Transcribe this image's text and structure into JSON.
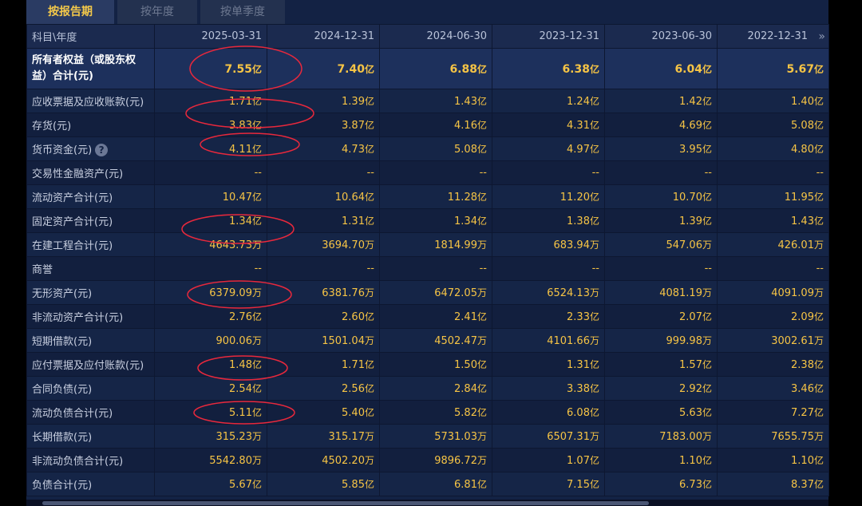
{
  "tabs": [
    {
      "label": "按报告期",
      "active": true
    },
    {
      "label": "按年度",
      "active": false
    },
    {
      "label": "按单季度",
      "active": false
    }
  ],
  "header": {
    "label": "科目\\年度",
    "periods": [
      "2025-03-31",
      "2024-12-31",
      "2024-06-30",
      "2023-12-31",
      "2023-06-30",
      "2022-12-31"
    ],
    "more_icon": "double-chevron-right-icon"
  },
  "rows": [
    {
      "label": "所有者权益（或股东权益）合计(元)",
      "values": [
        [
          "7.55",
          "亿"
        ],
        [
          "7.40",
          "亿"
        ],
        [
          "6.88",
          "亿"
        ],
        [
          "6.38",
          "亿"
        ],
        [
          "6.04",
          "亿"
        ],
        [
          "5.67",
          "亿"
        ]
      ],
      "highlight": true
    },
    {
      "label": "应收票据及应收账款(元)",
      "values": [
        [
          "1.71",
          "亿"
        ],
        [
          "1.39",
          "亿"
        ],
        [
          "1.43",
          "亿"
        ],
        [
          "1.24",
          "亿"
        ],
        [
          "1.42",
          "亿"
        ],
        [
          "1.40",
          "亿"
        ]
      ]
    },
    {
      "label": "存货(元)",
      "values": [
        [
          "3.83",
          "亿"
        ],
        [
          "3.87",
          "亿"
        ],
        [
          "4.16",
          "亿"
        ],
        [
          "4.31",
          "亿"
        ],
        [
          "4.69",
          "亿"
        ],
        [
          "5.08",
          "亿"
        ]
      ]
    },
    {
      "label": "货币资金(元)",
      "help": "?",
      "values": [
        [
          "4.11",
          "亿"
        ],
        [
          "4.73",
          "亿"
        ],
        [
          "5.08",
          "亿"
        ],
        [
          "4.97",
          "亿"
        ],
        [
          "3.95",
          "亿"
        ],
        [
          "4.80",
          "亿"
        ]
      ]
    },
    {
      "label": "交易性金融资产(元)",
      "values": [
        [
          "--",
          ""
        ],
        [
          "--",
          ""
        ],
        [
          "--",
          ""
        ],
        [
          "--",
          ""
        ],
        [
          "--",
          ""
        ],
        [
          "--",
          ""
        ]
      ]
    },
    {
      "label": "流动资产合计(元)",
      "values": [
        [
          "10.47",
          "亿"
        ],
        [
          "10.64",
          "亿"
        ],
        [
          "11.28",
          "亿"
        ],
        [
          "11.20",
          "亿"
        ],
        [
          "10.70",
          "亿"
        ],
        [
          "11.95",
          "亿"
        ]
      ]
    },
    {
      "label": "固定资产合计(元)",
      "values": [
        [
          "1.34",
          "亿"
        ],
        [
          "1.31",
          "亿"
        ],
        [
          "1.34",
          "亿"
        ],
        [
          "1.38",
          "亿"
        ],
        [
          "1.39",
          "亿"
        ],
        [
          "1.43",
          "亿"
        ]
      ]
    },
    {
      "label": "在建工程合计(元)",
      "values": [
        [
          "4643.73",
          "万"
        ],
        [
          "3694.70",
          "万"
        ],
        [
          "1814.99",
          "万"
        ],
        [
          "683.94",
          "万"
        ],
        [
          "547.06",
          "万"
        ],
        [
          "426.01",
          "万"
        ]
      ]
    },
    {
      "label": "商誉",
      "values": [
        [
          "--",
          ""
        ],
        [
          "--",
          ""
        ],
        [
          "--",
          ""
        ],
        [
          "--",
          ""
        ],
        [
          "--",
          ""
        ],
        [
          "--",
          ""
        ]
      ]
    },
    {
      "label": "无形资产(元)",
      "values": [
        [
          "6379.09",
          "万"
        ],
        [
          "6381.76",
          "万"
        ],
        [
          "6472.05",
          "万"
        ],
        [
          "6524.13",
          "万"
        ],
        [
          "4081.19",
          "万"
        ],
        [
          "4091.09",
          "万"
        ]
      ]
    },
    {
      "label": "非流动资产合计(元)",
      "values": [
        [
          "2.76",
          "亿"
        ],
        [
          "2.60",
          "亿"
        ],
        [
          "2.41",
          "亿"
        ],
        [
          "2.33",
          "亿"
        ],
        [
          "2.07",
          "亿"
        ],
        [
          "2.09",
          "亿"
        ]
      ]
    },
    {
      "label": "短期借款(元)",
      "values": [
        [
          "900.06",
          "万"
        ],
        [
          "1501.04",
          "万"
        ],
        [
          "4502.47",
          "万"
        ],
        [
          "4101.66",
          "万"
        ],
        [
          "999.98",
          "万"
        ],
        [
          "3002.61",
          "万"
        ]
      ]
    },
    {
      "label": "应付票据及应付账款(元)",
      "values": [
        [
          "1.48",
          "亿"
        ],
        [
          "1.71",
          "亿"
        ],
        [
          "1.50",
          "亿"
        ],
        [
          "1.31",
          "亿"
        ],
        [
          "1.57",
          "亿"
        ],
        [
          "2.38",
          "亿"
        ]
      ]
    },
    {
      "label": "合同负债(元)",
      "values": [
        [
          "2.54",
          "亿"
        ],
        [
          "2.56",
          "亿"
        ],
        [
          "2.84",
          "亿"
        ],
        [
          "3.38",
          "亿"
        ],
        [
          "2.92",
          "亿"
        ],
        [
          "3.46",
          "亿"
        ]
      ]
    },
    {
      "label": "流动负债合计(元)",
      "values": [
        [
          "5.11",
          "亿"
        ],
        [
          "5.40",
          "亿"
        ],
        [
          "5.82",
          "亿"
        ],
        [
          "6.08",
          "亿"
        ],
        [
          "5.63",
          "亿"
        ],
        [
          "7.27",
          "亿"
        ]
      ]
    },
    {
      "label": "长期借款(元)",
      "values": [
        [
          "315.23",
          "万"
        ],
        [
          "315.17",
          "万"
        ],
        [
          "5731.03",
          "万"
        ],
        [
          "6507.31",
          "万"
        ],
        [
          "7183.00",
          "万"
        ],
        [
          "7655.75",
          "万"
        ]
      ]
    },
    {
      "label": "非流动负债合计(元)",
      "values": [
        [
          "5542.80",
          "万"
        ],
        [
          "4502.20",
          "万"
        ],
        [
          "9896.72",
          "万"
        ],
        [
          "1.07",
          "亿"
        ],
        [
          "1.10",
          "亿"
        ],
        [
          "1.10",
          "亿"
        ]
      ]
    },
    {
      "label": "负债合计(元)",
      "values": [
        [
          "5.67",
          "亿"
        ],
        [
          "5.85",
          "亿"
        ],
        [
          "6.81",
          "亿"
        ],
        [
          "7.15",
          "亿"
        ],
        [
          "6.73",
          "亿"
        ],
        [
          "8.37",
          "亿"
        ]
      ]
    }
  ],
  "colors": {
    "annotation": "#e8283c",
    "value": "#f6c445",
    "accent": "#f3c84a"
  }
}
